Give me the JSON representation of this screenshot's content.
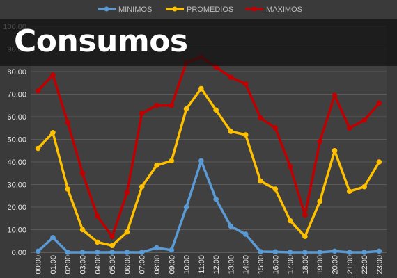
{
  "overlay_title": "Consumos",
  "chart_data": {
    "type": "line",
    "categories": [
      "00:00",
      "01:00",
      "02:00",
      "03:00",
      "04:00",
      "05:00",
      "06:00",
      "07:00",
      "08:00",
      "09:00",
      "10:00",
      "11:00",
      "12:00",
      "13:00",
      "14:00",
      "15:00",
      "16:00",
      "17:00",
      "18:00",
      "19:00",
      "20:00",
      "21:00",
      "22:00",
      "23:00"
    ],
    "y_ticks": [
      "0.00",
      "10.00",
      "20.00",
      "30.00",
      "40.00",
      "50.00",
      "60.00",
      "70.00",
      "80.00",
      "90.00",
      "100.00"
    ],
    "ylim": [
      0,
      100
    ],
    "grid": true,
    "legend_position": "top",
    "series": [
      {
        "name": "MINIMOS",
        "color": "#5b9bd5",
        "values": [
          0.5,
          6.5,
          0,
          0,
          0,
          0,
          0,
          0,
          2,
          1,
          20,
          40.5,
          23.5,
          11.5,
          8,
          0.3,
          0.2,
          0,
          0,
          0,
          0.5,
          0,
          0,
          0.5
        ]
      },
      {
        "name": "PROMEDIOS",
        "color": "#ffc000",
        "values": [
          46,
          53,
          28,
          10,
          4.5,
          3,
          9,
          29,
          38.5,
          40.5,
          63.5,
          72.5,
          63,
          53.5,
          52,
          31.5,
          28,
          14,
          7,
          22.5,
          45,
          27,
          29,
          40
        ]
      },
      {
        "name": "MAXIMOS",
        "color": "#c00000",
        "values": [
          71.5,
          78.5,
          57.5,
          35,
          16,
          7,
          26.5,
          61.5,
          65,
          65,
          84,
          86.5,
          82,
          77.5,
          74.5,
          59.5,
          55,
          38,
          16.5,
          49,
          69.5,
          55,
          58.5,
          66
        ]
      }
    ]
  }
}
